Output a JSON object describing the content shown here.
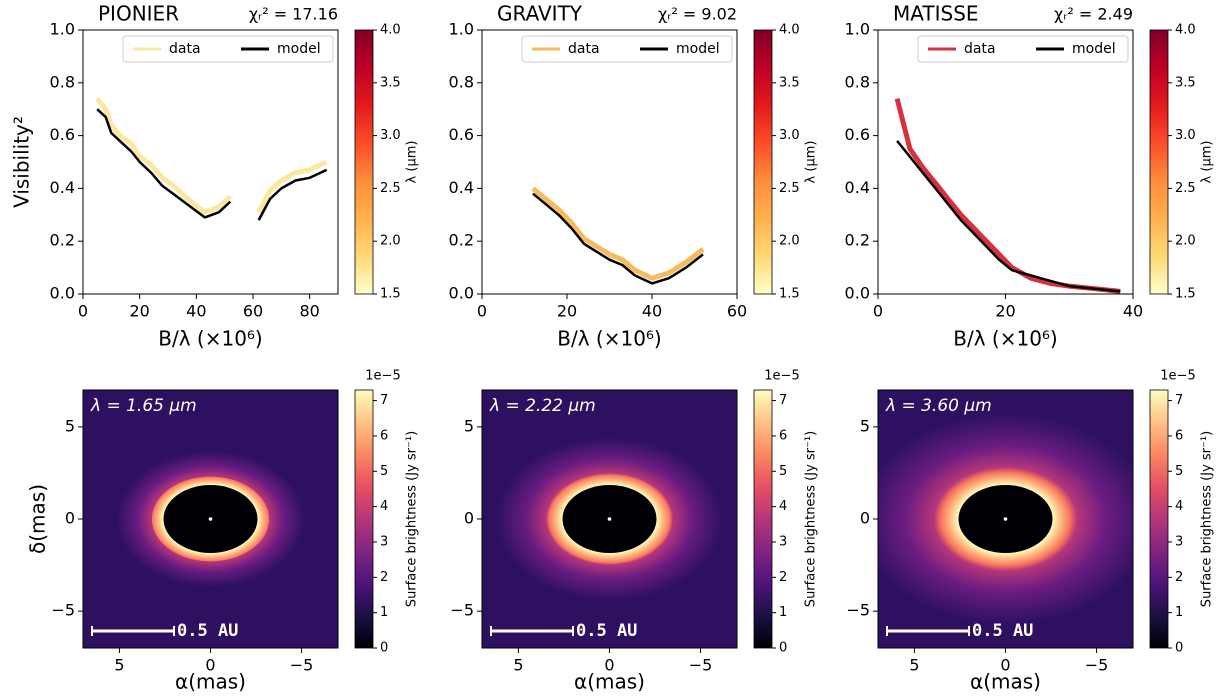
{
  "chart_data": [
    {
      "type": "line",
      "title": "PIONIER",
      "stat": "χᵣ² = 17.16",
      "y_label": "Visibility²",
      "x_label": "B/λ (×10⁶)",
      "xlim": [
        0,
        90
      ],
      "xticks": [
        0,
        20,
        40,
        60,
        80
      ],
      "ylim": [
        0,
        1
      ],
      "yticks": [
        {
          "value": 0,
          "label": "0.0"
        },
        0.2,
        0.4,
        0.6,
        0.8,
        {
          "value": 1,
          "label": "1.0"
        }
      ],
      "series": [
        {
          "name": "data",
          "color": "#fbe7a0",
          "x": [
            5,
            8,
            10,
            13,
            17,
            20,
            24,
            28,
            33,
            38,
            43,
            48,
            52,
            null,
            62,
            66,
            70,
            75,
            80,
            86
          ],
          "values": [
            0.74,
            0.7,
            0.64,
            0.6,
            0.57,
            0.52,
            0.49,
            0.44,
            0.4,
            0.35,
            0.31,
            0.33,
            0.37,
            null,
            0.31,
            0.39,
            0.43,
            0.46,
            0.47,
            0.5
          ]
        },
        {
          "name": "model",
          "color": "#000000",
          "x": [
            5,
            8,
            10,
            13,
            17,
            20,
            24,
            28,
            33,
            38,
            43,
            48,
            52,
            null,
            62,
            66,
            70,
            75,
            80,
            86
          ],
          "values": [
            0.7,
            0.67,
            0.61,
            0.58,
            0.54,
            0.5,
            0.46,
            0.41,
            0.37,
            0.33,
            0.29,
            0.31,
            0.35,
            null,
            0.28,
            0.36,
            0.4,
            0.43,
            0.44,
            0.47
          ]
        }
      ],
      "legend": "upper right",
      "colorbar": {
        "label": "λ (μm)",
        "lim": [
          1.5,
          4.0
        ],
        "ticks": [
          1.5,
          {
            "value": 2,
            "label": "2.0"
          },
          2.5,
          {
            "value": 3,
            "label": "3.0"
          },
          3.5,
          {
            "value": 4,
            "label": "4.0"
          }
        ],
        "colormap": [
          "#ffffcc",
          "#fed976",
          "#feb24c",
          "#fd8d3c",
          "#fc4e2a",
          "#e31a1c",
          "#bd0026",
          "#800026"
        ]
      }
    },
    {
      "type": "line",
      "title": "GRAVITY",
      "stat": "χᵣ² = 9.02",
      "x_label": "B/λ (×10⁶)",
      "xlim": [
        0,
        60
      ],
      "xticks": [
        0,
        20,
        40,
        60
      ],
      "ylim": [
        0,
        1
      ],
      "yticks": [
        {
          "value": 0,
          "label": "0.0"
        },
        0.2,
        0.4,
        0.6,
        0.8,
        {
          "value": 1,
          "label": "1.0"
        }
      ],
      "series": [
        {
          "name": "data",
          "color": "#f6bb5c",
          "x": [
            12,
            15,
            18,
            21,
            24,
            27,
            30,
            33,
            36,
            40,
            44,
            48,
            52
          ],
          "values": [
            0.4,
            0.36,
            0.32,
            0.27,
            0.21,
            0.18,
            0.15,
            0.13,
            0.09,
            0.06,
            0.08,
            0.12,
            0.17
          ]
        },
        {
          "name": "model",
          "color": "#000000",
          "x": [
            12,
            15,
            18,
            21,
            24,
            27,
            30,
            33,
            36,
            40,
            44,
            48,
            52
          ],
          "values": [
            0.38,
            0.34,
            0.3,
            0.25,
            0.19,
            0.16,
            0.13,
            0.11,
            0.07,
            0.04,
            0.06,
            0.1,
            0.15
          ]
        }
      ],
      "legend": "upper right",
      "colorbar": {
        "label": "λ (μm)",
        "lim": [
          1.5,
          4.0
        ],
        "ticks": [
          1.5,
          {
            "value": 2,
            "label": "2.0"
          },
          2.5,
          {
            "value": 3,
            "label": "3.0"
          },
          3.5,
          {
            "value": 4,
            "label": "4.0"
          }
        ],
        "colormap": [
          "#ffffcc",
          "#fed976",
          "#feb24c",
          "#fd8d3c",
          "#fc4e2a",
          "#e31a1c",
          "#bd0026",
          "#800026"
        ]
      }
    },
    {
      "type": "line",
      "title": "MATISSE",
      "stat": "χᵣ² = 2.49",
      "x_label": "B/λ (×10⁶)",
      "xlim": [
        0,
        40
      ],
      "xticks": [
        0,
        20,
        40
      ],
      "ylim": [
        0,
        1
      ],
      "yticks": [
        {
          "value": 0,
          "label": "0.0"
        },
        0.2,
        0.4,
        0.6,
        0.8,
        {
          "value": 1,
          "label": "1.0"
        }
      ],
      "series": [
        {
          "name": "data",
          "color": "#d7303f",
          "x": [
            3,
            5,
            7,
            9,
            11,
            13,
            15,
            17,
            19,
            21,
            24,
            27,
            30,
            34,
            38
          ],
          "values": [
            0.74,
            0.55,
            0.48,
            0.42,
            0.36,
            0.3,
            0.25,
            0.2,
            0.15,
            0.1,
            0.06,
            0.04,
            0.03,
            0.02,
            0.01
          ]
        },
        {
          "name": "model",
          "color": "#000000",
          "x": [
            3,
            5,
            7,
            9,
            11,
            13,
            15,
            17,
            19,
            21,
            24,
            27,
            30,
            34,
            38
          ],
          "values": [
            0.58,
            0.52,
            0.46,
            0.4,
            0.34,
            0.28,
            0.23,
            0.18,
            0.13,
            0.09,
            0.07,
            0.05,
            0.03,
            0.02,
            0.01
          ]
        }
      ],
      "legend": "upper right",
      "colorbar": {
        "label": "λ (μm)",
        "lim": [
          1.5,
          4.0
        ],
        "ticks": [
          1.5,
          {
            "value": 2,
            "label": "2.0"
          },
          2.5,
          {
            "value": 3,
            "label": "3.0"
          },
          3.5,
          {
            "value": 4,
            "label": "4.0"
          }
        ],
        "colormap": [
          "#ffffcc",
          "#fed976",
          "#feb24c",
          "#fd8d3c",
          "#fc4e2a",
          "#e31a1c",
          "#bd0026",
          "#800026"
        ]
      }
    },
    {
      "type": "image",
      "annotation": "λ = 1.65 μm",
      "scale_bar": "0.5 AU",
      "x_label": "α(mas)",
      "y_label": "δ(mas)",
      "xlim": [
        7,
        -7
      ],
      "xticks": [
        5,
        0,
        {
          "value": -5,
          "label": "−5"
        }
      ],
      "ylim": [
        -7,
        7
      ],
      "yticks": [
        5,
        0,
        {
          "value": -5,
          "label": "−5"
        }
      ],
      "colorbar": {
        "label": "Surface brightness (Jy sr⁻¹)",
        "offset": "1e−5",
        "lim": [
          0,
          7.3
        ],
        "ticks": [
          0,
          1,
          2,
          3,
          4,
          5,
          6,
          7
        ],
        "colormap": [
          "#000004",
          "#1c1044",
          "#4f127b",
          "#812581",
          "#b5367a",
          "#e55064",
          "#fb8761",
          "#fec287",
          "#fcfdbf"
        ]
      }
    },
    {
      "type": "image",
      "annotation": "λ = 2.22 μm",
      "scale_bar": "0.5 AU",
      "x_label": "α(mas)",
      "xlim": [
        7,
        -7
      ],
      "xticks": [
        5,
        0,
        {
          "value": -5,
          "label": "−5"
        }
      ],
      "ylim": [
        -7,
        7
      ],
      "yticks": [
        5,
        0,
        {
          "value": -5,
          "label": "−5"
        }
      ],
      "colorbar": {
        "label": "Surface brightness (Jy sr⁻¹)",
        "offset": "1e−5",
        "lim": [
          0,
          7.3
        ],
        "ticks": [
          0,
          1,
          2,
          3,
          4,
          5,
          6,
          7
        ],
        "colormap": [
          "#000004",
          "#1c1044",
          "#4f127b",
          "#812581",
          "#b5367a",
          "#e55064",
          "#fb8761",
          "#fec287",
          "#fcfdbf"
        ]
      }
    },
    {
      "type": "image",
      "annotation": "λ = 3.60 μm",
      "scale_bar": "0.5 AU",
      "x_label": "α(mas)",
      "xlim": [
        7,
        -7
      ],
      "xticks": [
        5,
        0,
        {
          "value": -5,
          "label": "−5"
        }
      ],
      "ylim": [
        -7,
        7
      ],
      "yticks": [
        5,
        0,
        {
          "value": -5,
          "label": "−5"
        }
      ],
      "colorbar": {
        "label": "Surface brightness (Jy sr⁻¹)",
        "offset": "1e−5",
        "lim": [
          0,
          7.3
        ],
        "ticks": [
          0,
          1,
          2,
          3,
          4,
          5,
          6,
          7
        ],
        "colormap": [
          "#000004",
          "#1c1044",
          "#4f127b",
          "#812581",
          "#b5367a",
          "#e55064",
          "#fb8761",
          "#fec287",
          "#fcfdbf"
        ]
      }
    }
  ]
}
